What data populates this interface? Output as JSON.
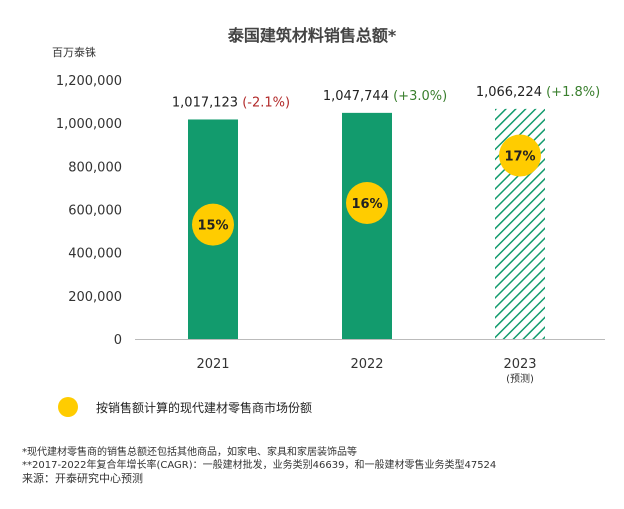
{
  "chart_data": {
    "type": "bar",
    "title": "泰国建筑材料销售总额*",
    "unit_label": "百万泰铢",
    "ylim": [
      0,
      1200000
    ],
    "y_ticks": [
      {
        "value": 0,
        "label": "0"
      },
      {
        "value": 200000,
        "label": "200,000"
      },
      {
        "value": 400000,
        "label": "400,000"
      },
      {
        "value": 600000,
        "label": "600,000"
      },
      {
        "value": 800000,
        "label": "800,000"
      },
      {
        "value": 1000000,
        "label": "1,000,000"
      },
      {
        "value": 1200000,
        "label": "1,200,000"
      }
    ],
    "categories": [
      "2021",
      "2022",
      "2023"
    ],
    "category_notes": [
      "",
      "",
      "(预测)"
    ],
    "values": [
      1017123,
      1047744,
      1066224
    ],
    "value_labels": [
      "1,017,123",
      "1,047,744",
      "1,066,224"
    ],
    "growth_labels": [
      "(-2.1%)",
      "(+3.0%)",
      "(+1.8%)"
    ],
    "growth_signs": [
      "neg",
      "pos",
      "pos"
    ],
    "forecast": [
      false,
      false,
      true
    ],
    "market_share": [
      15,
      16,
      17
    ],
    "market_share_labels": [
      "15%",
      "16%",
      "17%"
    ],
    "share_marker_values": [
      530000,
      630000,
      850000
    ],
    "colors": {
      "bar": "#129B6D",
      "hatch": "#129B6D",
      "marker": "#FFCC00",
      "negative": "#B22A2A",
      "positive": "#3A7F2E"
    },
    "legend": "按销售额计算的现代建材零售商市场份额",
    "grid": false
  },
  "notes": [
    "*现代建材零售商的销售总额还包括其他商品，如家电、家具和家居装饰品等",
    "**2017-2022年复合年增长率(CAGR)：一般建材批发，业务类别46639，和一般建材零售业务类型47524"
  ],
  "source": "来源：开泰研究中心预测"
}
